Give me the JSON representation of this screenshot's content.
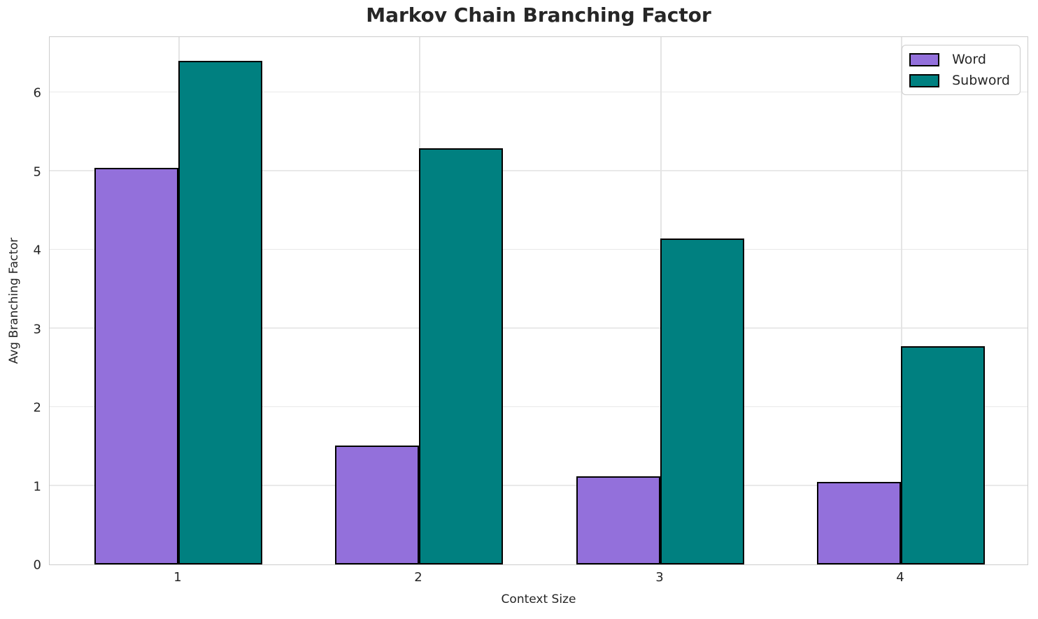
{
  "title": "Markov Chain Branching Factor",
  "chart_data": {
    "type": "bar",
    "categories": [
      "1",
      "2",
      "3",
      "4"
    ],
    "series": [
      {
        "name": "Word",
        "color": "#9370DB",
        "values": [
          5.04,
          1.51,
          1.12,
          1.05
        ]
      },
      {
        "name": "Subword",
        "color": "#008080",
        "values": [
          6.4,
          5.29,
          4.14,
          2.77
        ]
      }
    ],
    "title": "Markov Chain Branching Factor",
    "xlabel": "Context Size",
    "ylabel": "Avg Branching Factor",
    "ylim": [
      0,
      6.72
    ],
    "yticks": [
      0,
      1,
      2,
      3,
      4,
      5,
      6
    ],
    "grid": "horizontal and vertical light-gray gridlines",
    "legend_position": "upper right",
    "bar_edge_color": "#000000"
  },
  "colors": {
    "background": "#ffffff",
    "text": "#262626",
    "grid": "#e9e9e9",
    "spine": "#cccccc",
    "word_bar": "#9370DB",
    "subword_bar": "#008080"
  }
}
